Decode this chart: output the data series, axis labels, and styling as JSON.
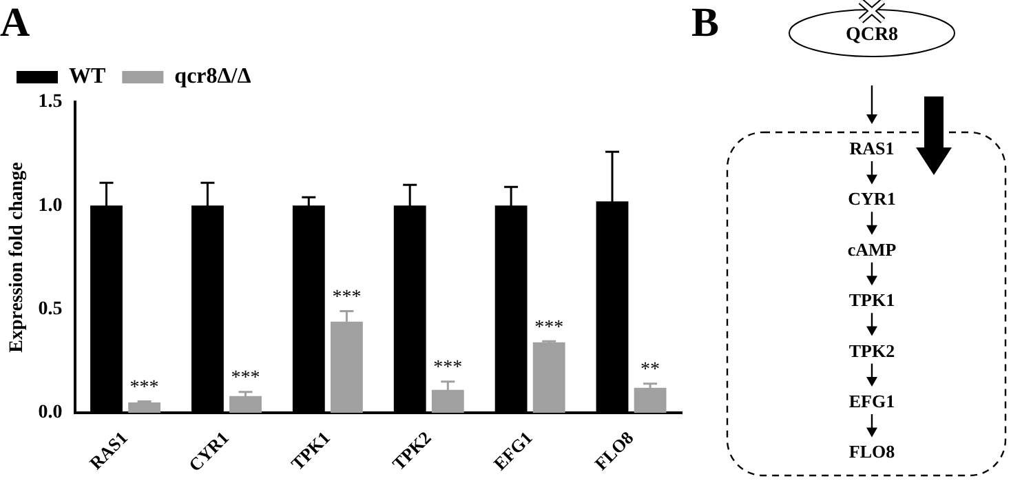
{
  "chart_data": [
    {
      "type": "bar",
      "title": "A",
      "ylabel": "Expression fold change",
      "categories": [
        "RAS1",
        "CYR1",
        "TPK1",
        "TPK2",
        "EFG1",
        "FLO8"
      ],
      "series": [
        {
          "name": "WT",
          "color": "#000000",
          "values": [
            1.0,
            1.0,
            1.0,
            1.0,
            1.0,
            1.02
          ],
          "errors": [
            0.11,
            0.11,
            0.04,
            0.1,
            0.09,
            0.24
          ]
        },
        {
          "name": "qcr8Δ/Δ",
          "color": "#a0a0a0",
          "values": [
            0.05,
            0.08,
            0.44,
            0.11,
            0.34,
            0.12
          ],
          "errors": [
            0.005,
            0.02,
            0.05,
            0.04,
            0.005,
            0.02
          ]
        }
      ],
      "ylim": [
        0,
        1.5
      ],
      "yticks": [
        {
          "value": 0,
          "label": "0.0"
        },
        {
          "value": 0.5,
          "label": "0.5"
        },
        {
          "value": 1,
          "label": "1.0"
        },
        {
          "value": 1.5,
          "label": "1.5"
        }
      ],
      "grid": false,
      "legend": "top left",
      "annotations": [
        "***",
        "***",
        "***",
        "***",
        "***",
        "**"
      ]
    },
    {
      "type": "other",
      "title": "B",
      "annotations": [
        "QCR8",
        "RAS1",
        "CYR1",
        "cAMP",
        "TPK1",
        "TPK2",
        "EFG1",
        "FLO8"
      ]
    }
  ]
}
